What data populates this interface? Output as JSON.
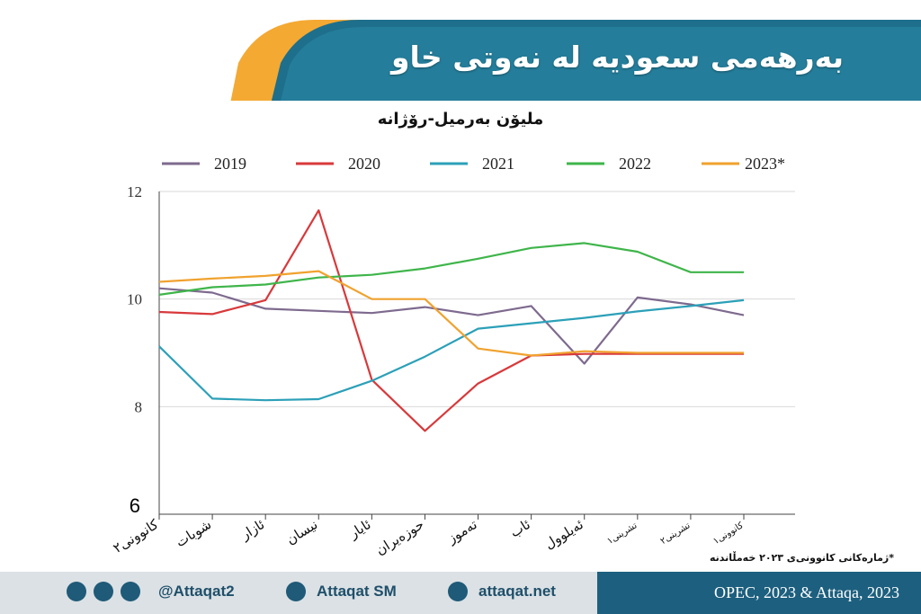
{
  "header": {
    "title": "بەرهەمی سعودیە لە نەوتی خاو"
  },
  "chart_data": {
    "type": "line",
    "subtitle": "ملیۆن بەرمیل-رۆژانە",
    "ylim": [
      6,
      12
    ],
    "yticks": [
      "12",
      "10",
      "8",
      "6"
    ],
    "categories": [
      "کانوونی٢",
      "شوبات",
      "ئازار",
      "نیسان",
      "ئایار",
      "حوزەیران",
      "تەموز",
      "ئاب",
      "ئەیلوول",
      "تشرینی١",
      "تشرینی٢",
      "کانوونی١"
    ],
    "series": [
      {
        "name": "2019",
        "color": "#7e6a8e",
        "values": [
          10.2,
          10.12,
          9.82,
          9.78,
          9.74,
          9.85,
          9.7,
          9.87,
          8.8,
          10.03,
          9.9,
          9.7
        ]
      },
      {
        "name": "2020",
        "color": "#d8393b",
        "values": [
          9.76,
          9.72,
          9.98,
          11.65,
          8.5,
          7.55,
          8.43,
          8.95,
          8.98,
          8.98,
          8.98,
          8.98
        ]
      },
      {
        "name": "2021",
        "color": "#2ca0b8",
        "values": [
          9.12,
          8.15,
          8.12,
          8.14,
          8.48,
          8.93,
          9.45,
          9.55,
          9.65,
          9.77,
          9.87,
          9.98
        ]
      },
      {
        "name": "2022",
        "color": "#3fb54a",
        "values": [
          10.08,
          10.22,
          10.27,
          10.4,
          10.45,
          10.57,
          10.75,
          10.95,
          11.04,
          10.88,
          10.5,
          10.5
        ]
      },
      {
        "name": "2023*",
        "color": "#f0a22e",
        "values": [
          10.32,
          10.38,
          10.43,
          10.52,
          10.0,
          10.0,
          9.08,
          8.95,
          9.03,
          9.0,
          9.0,
          9.0
        ]
      }
    ],
    "grid": true,
    "legend_position": "top"
  },
  "footnote": "*ژمارەکانی کانوونی‌ی ٢٠٢٣ خەمڵاندنە",
  "footer": {
    "social_handle": "@Attaqat2",
    "youtube": "Attaqat SM",
    "website": "attaqat.net",
    "source": "OPEC, 2023 & Attaqa, 2023"
  }
}
